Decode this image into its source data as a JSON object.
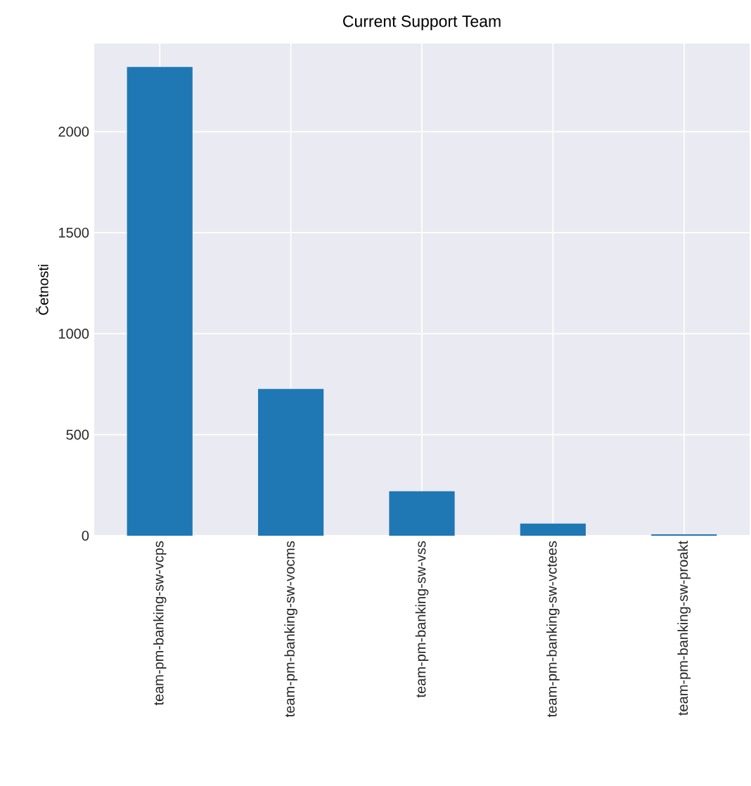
{
  "chart_data": {
    "type": "bar",
    "title": "Current Support Team",
    "ylabel": "Četnosti",
    "categories": [
      "team-pm-banking-sw-vcps",
      "team-pm-banking-sw-vocms",
      "team-pm-banking-sw-vss",
      "team-pm-banking-sw-vctees",
      "team-pm-banking-sw-proakt"
    ],
    "values": [
      2320,
      726,
      220,
      60,
      7
    ],
    "color": "#1f77b4",
    "ylim": [
      0,
      2436
    ],
    "yticks": [
      0,
      500,
      1000,
      1500,
      2000
    ],
    "grid": true
  }
}
